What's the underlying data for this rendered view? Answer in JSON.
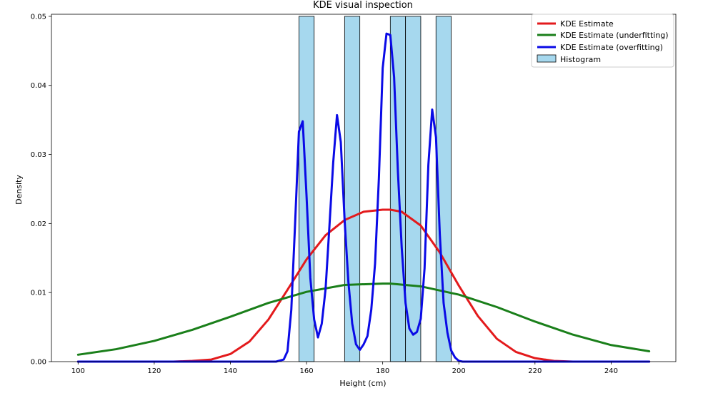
{
  "chart_data": {
    "type": "line",
    "title": "KDE visual inspection",
    "xlabel": "Height (cm)",
    "ylabel": "Density",
    "xlim": [
      93,
      257
    ],
    "ylim": [
      0,
      0.0503
    ],
    "x_ticks": [
      100,
      120,
      140,
      160,
      180,
      200,
      220,
      240
    ],
    "x_tick_labels": [
      "100",
      "120",
      "140",
      "160",
      "180",
      "200",
      "220",
      "240"
    ],
    "y_ticks": [
      0,
      0.01,
      0.02,
      0.03,
      0.04,
      0.05
    ],
    "y_tick_labels": [
      "0.00",
      "0.01",
      "0.02",
      "0.03",
      "0.04",
      "0.05"
    ],
    "grid": false,
    "legend_position": "top-right",
    "histogram": {
      "name": "Histogram",
      "color": "#a6d8ee",
      "edge_color": "#000000",
      "bins": [
        {
          "x0": 158,
          "x1": 162,
          "value": 0.05
        },
        {
          "x0": 170,
          "x1": 174,
          "value": 0.05
        },
        {
          "x0": 182,
          "x1": 186,
          "value": 0.05
        },
        {
          "x0": 186,
          "x1": 190,
          "value": 0.05
        },
        {
          "x0": 194,
          "x1": 198,
          "value": 0.05
        }
      ]
    },
    "series": [
      {
        "name": "KDE Estimate",
        "color": "#e31a1c",
        "x": [
          100,
          110,
          120,
          125,
          130,
          135,
          140,
          145,
          150,
          155,
          160,
          165,
          170,
          175,
          180,
          182,
          185,
          190,
          195,
          200,
          205,
          210,
          215,
          220,
          225,
          230,
          240,
          250
        ],
        "values": [
          0,
          0,
          0,
          0,
          0.0001,
          0.0003,
          0.0011,
          0.0029,
          0.0061,
          0.0104,
          0.0148,
          0.0183,
          0.0205,
          0.0217,
          0.022,
          0.022,
          0.0217,
          0.0197,
          0.0158,
          0.011,
          0.0066,
          0.0033,
          0.0014,
          0.0005,
          0.0001,
          0,
          0,
          0
        ]
      },
      {
        "name": "KDE Estimate (underfitting)",
        "color": "#1a7f1a",
        "x": [
          100,
          110,
          120,
          130,
          140,
          150,
          160,
          170,
          180,
          182,
          190,
          200,
          210,
          220,
          230,
          240,
          250
        ],
        "values": [
          0.001,
          0.0018,
          0.003,
          0.0046,
          0.0065,
          0.0085,
          0.0101,
          0.0111,
          0.0113,
          0.0113,
          0.0109,
          0.0097,
          0.0079,
          0.0058,
          0.0039,
          0.0024,
          0.0015
        ]
      },
      {
        "name": "KDE Estimate (overfitting)",
        "color": "#0a0ae6",
        "x": [
          100,
          150,
          152,
          154,
          155,
          156,
          157,
          158,
          159,
          160,
          161,
          162,
          163,
          164,
          165,
          166,
          167,
          168,
          169,
          170,
          171,
          172,
          173,
          174,
          175,
          176,
          177,
          178,
          179,
          180,
          181,
          182,
          183,
          184,
          185,
          186,
          187,
          188,
          189,
          190,
          191,
          192,
          193,
          194,
          195,
          196,
          197,
          198,
          199,
          200,
          201,
          202,
          203,
          204,
          205,
          250
        ],
        "values": [
          0,
          0,
          0,
          0.0003,
          0.0015,
          0.0075,
          0.02,
          0.0333,
          0.0348,
          0.024,
          0.0121,
          0.0061,
          0.0035,
          0.0055,
          0.0105,
          0.0195,
          0.0288,
          0.0357,
          0.0318,
          0.0205,
          0.0115,
          0.0055,
          0.0025,
          0.0017,
          0.0025,
          0.0037,
          0.0075,
          0.0142,
          0.0265,
          0.0425,
          0.0475,
          0.0473,
          0.0412,
          0.0275,
          0.0165,
          0.0085,
          0.0048,
          0.0039,
          0.0043,
          0.0062,
          0.0135,
          0.0285,
          0.0365,
          0.0325,
          0.0185,
          0.0085,
          0.0042,
          0.0016,
          0.0006,
          0.0001,
          0,
          0,
          0,
          0,
          0,
          0
        ]
      }
    ]
  }
}
